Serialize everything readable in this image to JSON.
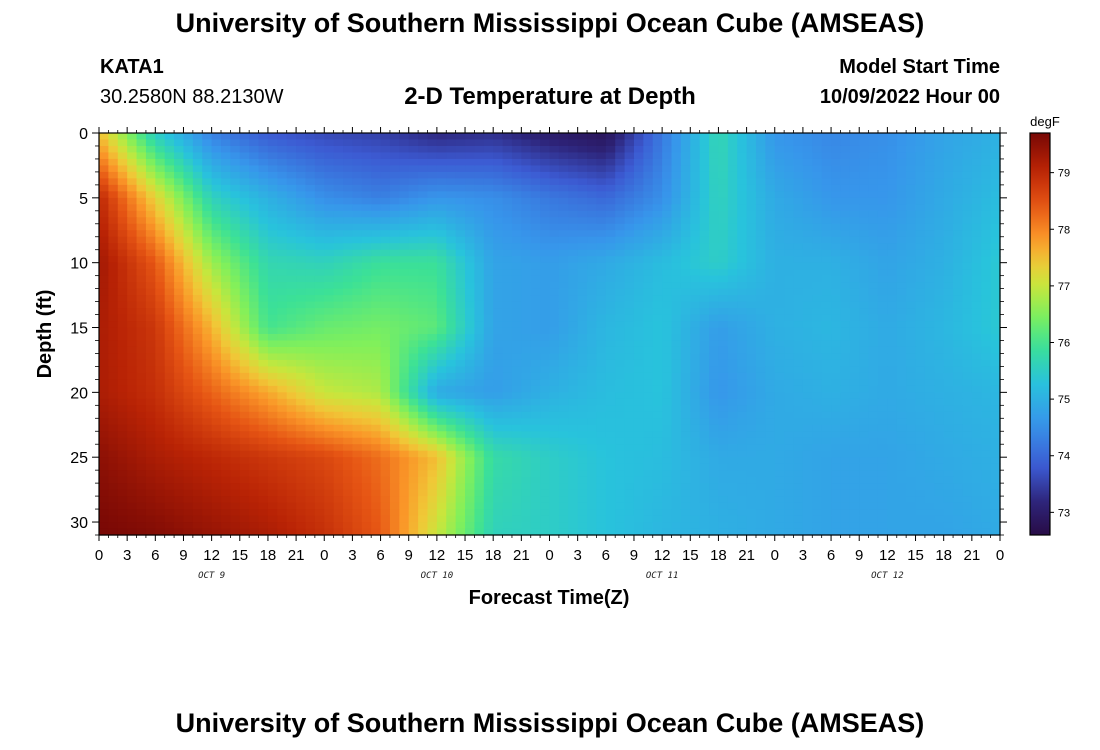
{
  "header": {
    "title": "University of Southern Mississippi Ocean Cube (AMSEAS)",
    "station_id": "KATA1",
    "station_coords": "30.2580N  88.2130W",
    "plot_title": "2-D Temperature at Depth",
    "model_start_label": "Model Start Time",
    "model_start_value": "10/09/2022 Hour 00"
  },
  "footer": {
    "title": "University of Southern Mississippi Ocean Cube (AMSEAS)"
  },
  "chart_data": {
    "type": "heatmap",
    "title": "2-D Temperature at Depth",
    "xlabel": "Forecast Time(Z)",
    "ylabel": "Depth (ft)",
    "x_hours_from_start": [
      0,
      96
    ],
    "x_tick_hours": [
      0,
      3,
      6,
      9,
      12,
      15,
      18,
      21,
      24,
      27,
      30,
      33,
      36,
      39,
      42,
      45,
      48,
      51,
      54,
      57,
      60,
      63,
      66,
      69,
      72,
      75,
      78,
      81,
      84,
      87,
      90,
      93,
      96
    ],
    "x_tick_labels": [
      "0",
      "3",
      "6",
      "9",
      "12",
      "15",
      "18",
      "21",
      "0",
      "3",
      "6",
      "9",
      "12",
      "15",
      "18",
      "21",
      "0",
      "3",
      "6",
      "9",
      "12",
      "15",
      "18",
      "21",
      "0",
      "3",
      "6",
      "9",
      "12",
      "15",
      "18",
      "21",
      "0"
    ],
    "day_labels": [
      {
        "label": "OCT 9",
        "hour": 12
      },
      {
        "label": "OCT 10",
        "hour": 36
      },
      {
        "label": "OCT 11",
        "hour": 60
      },
      {
        "label": "OCT 12",
        "hour": 84
      }
    ],
    "y_ticks": [
      0,
      5,
      10,
      15,
      20,
      25,
      30
    ],
    "y_tick_labels": [
      "0",
      "5",
      "10",
      "15",
      "20",
      "25",
      "30"
    ],
    "ylim": [
      0,
      31
    ],
    "y_inverted": true,
    "colorbar": {
      "label": "degF",
      "range": [
        72.6,
        79.7
      ],
      "ticks": [
        73,
        74,
        75,
        76,
        77,
        78,
        79
      ],
      "tick_labels": [
        "73",
        "74",
        "75",
        "76",
        "77",
        "78",
        "79"
      ]
    },
    "grid_x_hours": [
      0,
      6,
      12,
      18,
      24,
      30,
      36,
      42,
      48,
      54,
      60,
      66,
      72,
      78,
      84,
      90,
      96
    ],
    "grid_depth_ft": [
      0,
      5,
      10,
      15,
      20,
      25,
      31
    ],
    "temperatures_degF": [
      [
        77.5,
        75.5,
        74.3,
        73.8,
        73.6,
        73.5,
        73.2,
        73.3,
        73.0,
        72.8,
        74.2,
        75.7,
        74.6,
        74.4,
        74.5,
        74.8,
        75.0
      ],
      [
        79.0,
        77.3,
        75.6,
        75.0,
        74.5,
        74.3,
        74.6,
        74.5,
        74.2,
        74.0,
        74.5,
        75.6,
        74.9,
        74.6,
        74.6,
        74.9,
        75.2
      ],
      [
        79.3,
        78.4,
        76.7,
        75.7,
        75.6,
        75.9,
        75.9,
        74.8,
        74.7,
        74.9,
        75.2,
        75.5,
        75.0,
        75.0,
        74.8,
        75.0,
        75.4
      ],
      [
        79.2,
        78.8,
        77.6,
        76.0,
        76.3,
        76.4,
        76.2,
        74.8,
        74.7,
        75.1,
        75.3,
        74.7,
        75.0,
        75.1,
        74.9,
        75.1,
        75.4
      ],
      [
        79.2,
        78.9,
        78.3,
        77.7,
        77.0,
        76.8,
        74.9,
        74.7,
        75.0,
        75.2,
        75.3,
        74.6,
        74.9,
        75.0,
        74.9,
        75.0,
        75.1
      ],
      [
        79.5,
        79.2,
        79.0,
        78.8,
        78.6,
        78.2,
        77.5,
        75.8,
        75.5,
        75.3,
        75.2,
        74.9,
        74.9,
        74.8,
        74.8,
        74.9,
        75.0
      ],
      [
        79.7,
        79.6,
        79.4,
        79.2,
        78.9,
        78.4,
        77.0,
        75.6,
        75.5,
        75.3,
        75.1,
        75.0,
        74.9,
        74.8,
        74.8,
        74.8,
        74.9
      ]
    ]
  }
}
